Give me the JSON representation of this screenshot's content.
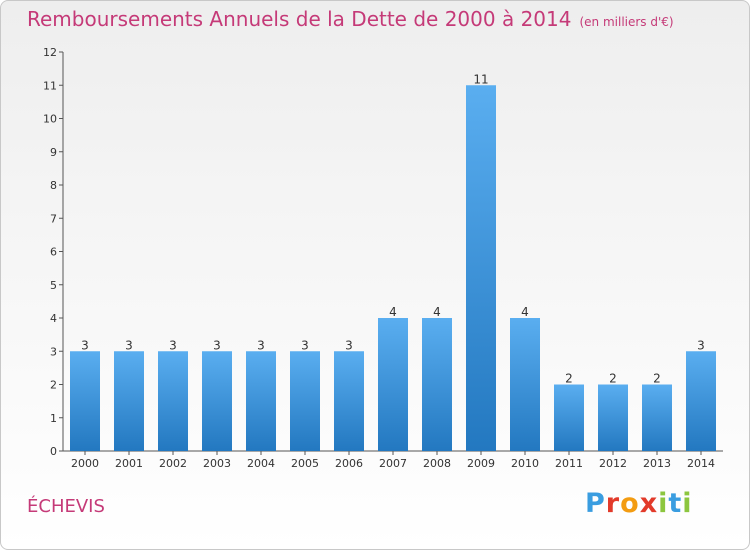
{
  "title": "Remboursements Annuels de la Dette de 2000 à 2014",
  "unit_note": "(en milliers d'€)",
  "commune": "ÉCHEVIS",
  "logo": {
    "letters": [
      "P",
      "r",
      "o",
      "x",
      "i",
      "t",
      "i"
    ],
    "colors": [
      "#3a9de0",
      "#e23a2a",
      "#f39c12",
      "#e23a2a",
      "#8cc63f",
      "#3a9de0",
      "#8cc63f"
    ]
  },
  "colors": {
    "bar_top": "#5aaef0",
    "bar_bottom": "#2378c0",
    "title": "#c53a78"
  },
  "chart_data": {
    "type": "bar",
    "title": "Remboursements Annuels de la Dette de 2000 à 2014",
    "categories": [
      "2000",
      "2001",
      "2002",
      "2003",
      "2004",
      "2005",
      "2006",
      "2007",
      "2008",
      "2009",
      "2010",
      "2011",
      "2012",
      "2013",
      "2014"
    ],
    "values": [
      3,
      3,
      3,
      3,
      3,
      3,
      3,
      4,
      4,
      11,
      4,
      2,
      2,
      2,
      3
    ],
    "ylim": [
      0,
      12
    ],
    "yticks": [
      0,
      1,
      2,
      3,
      4,
      5,
      6,
      7,
      8,
      9,
      10,
      11,
      12
    ],
    "grid": false,
    "data_labels": true
  }
}
